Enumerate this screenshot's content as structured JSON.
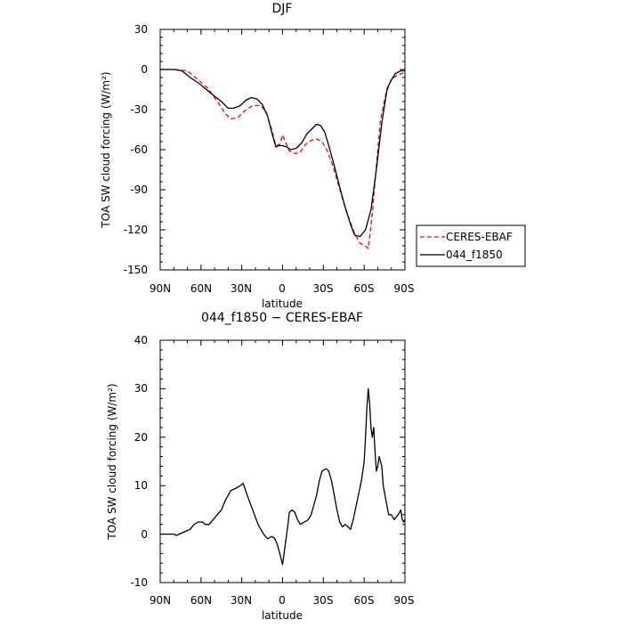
{
  "chart_data": [
    {
      "type": "line",
      "title": "DJF",
      "xlabel": "latitude",
      "ylabel": "TOA SW cloud forcing (W/m²)",
      "xlim": [
        90,
        -90
      ],
      "ylim": [
        -150,
        30
      ],
      "xticks": [
        90,
        60,
        30,
        0,
        -30,
        -60,
        -90
      ],
      "xtick_labels": [
        "90N",
        "60N",
        "30N",
        "0",
        "30S",
        "60S",
        "90S"
      ],
      "yticks": [
        -150,
        -120,
        -90,
        -60,
        -30,
        0,
        30
      ],
      "ytick_labels": [
        "-150",
        "-120",
        "-90",
        "-60",
        "-30",
        "0",
        "30"
      ],
      "legend": {
        "position": "right",
        "entries": [
          "CERES-EBAF",
          "044_f1850"
        ]
      },
      "series": [
        {
          "name": "CERES-EBAF",
          "color": "#ff0000",
          "dash": "dashed",
          "points": [
            [
              90,
              0
            ],
            [
              80,
              0
            ],
            [
              70,
              -1
            ],
            [
              63,
              -7
            ],
            [
              55,
              -14
            ],
            [
              48,
              -24
            ],
            [
              42,
              -33
            ],
            [
              38,
              -37
            ],
            [
              33,
              -36
            ],
            [
              28,
              -31
            ],
            [
              22,
              -27
            ],
            [
              16,
              -27
            ],
            [
              12,
              -32
            ],
            [
              8,
              -45
            ],
            [
              5,
              -57
            ],
            [
              2,
              -56
            ],
            [
              0,
              -49
            ],
            [
              -2,
              -54
            ],
            [
              -5,
              -61
            ],
            [
              -9,
              -63
            ],
            [
              -13,
              -62
            ],
            [
              -17,
              -56
            ],
            [
              -21,
              -53
            ],
            [
              -25,
              -52
            ],
            [
              -29,
              -54
            ],
            [
              -33,
              -61
            ],
            [
              -37,
              -72
            ],
            [
              -41,
              -86
            ],
            [
              -45,
              -100
            ],
            [
              -49,
              -112
            ],
            [
              -53,
              -123
            ],
            [
              -57,
              -130
            ],
            [
              -61,
              -132
            ],
            [
              -63,
              -134
            ],
            [
              -64,
              -126
            ],
            [
              -66,
              -108
            ],
            [
              -69,
              -72
            ],
            [
              -72,
              -38
            ],
            [
              -76,
              -18
            ],
            [
              -80,
              -7
            ],
            [
              -85,
              -4
            ],
            [
              -88,
              -3
            ],
            [
              -90,
              -2
            ]
          ]
        },
        {
          "name": "044_f1850",
          "color": "#000000",
          "dash": "solid",
          "points": [
            [
              90,
              0
            ],
            [
              80,
              0
            ],
            [
              74,
              -1
            ],
            [
              68,
              -6
            ],
            [
              62,
              -10
            ],
            [
              56,
              -15
            ],
            [
              50,
              -20
            ],
            [
              45,
              -24
            ],
            [
              40,
              -29
            ],
            [
              36,
              -29
            ],
            [
              31,
              -27
            ],
            [
              27,
              -23
            ],
            [
              23,
              -21
            ],
            [
              19,
              -22
            ],
            [
              15,
              -26
            ],
            [
              11,
              -35
            ],
            [
              8,
              -47
            ],
            [
              5,
              -58
            ],
            [
              3,
              -57
            ],
            [
              0,
              -57
            ],
            [
              -3,
              -58
            ],
            [
              -6,
              -60
            ],
            [
              -10,
              -59
            ],
            [
              -14,
              -55
            ],
            [
              -18,
              -48
            ],
            [
              -22,
              -44
            ],
            [
              -25,
              -41
            ],
            [
              -28,
              -42
            ],
            [
              -31,
              -47
            ],
            [
              -34,
              -57
            ],
            [
              -38,
              -72
            ],
            [
              -42,
              -88
            ],
            [
              -46,
              -103
            ],
            [
              -50,
              -116
            ],
            [
              -53,
              -124
            ],
            [
              -57,
              -125
            ],
            [
              -61,
              -120
            ],
            [
              -65,
              -105
            ],
            [
              -69,
              -75
            ],
            [
              -73,
              -40
            ],
            [
              -77,
              -14
            ],
            [
              -80,
              -8
            ],
            [
              -83,
              -3
            ],
            [
              -87,
              -1
            ],
            [
              -90,
              -1
            ]
          ]
        }
      ]
    },
    {
      "type": "line",
      "title": "044_f1850 − CERES-EBAF",
      "xlabel": "latitude",
      "ylabel": "TOA SW cloud forcing (W/m²)",
      "xlim": [
        90,
        -90
      ],
      "ylim": [
        -10,
        40
      ],
      "xticks": [
        90,
        60,
        30,
        0,
        -30,
        -60,
        -90
      ],
      "xtick_labels": [
        "90N",
        "60N",
        "30N",
        "0",
        "30S",
        "60S",
        "90S"
      ],
      "yticks": [
        -10,
        0,
        10,
        20,
        30,
        40
      ],
      "ytick_labels": [
        "-10",
        "0",
        "10",
        "20",
        "30",
        "40"
      ],
      "series": [
        {
          "color": "#000000",
          "dash": "solid",
          "points": [
            [
              90,
              0
            ],
            [
              80,
              0
            ],
            [
              78,
              -0.3
            ],
            [
              76,
              0
            ],
            [
              72,
              0.5
            ],
            [
              68,
              1
            ],
            [
              65,
              2
            ],
            [
              62,
              2.5
            ],
            [
              59,
              2.5
            ],
            [
              57,
              2
            ],
            [
              54,
              2
            ],
            [
              51,
              3
            ],
            [
              48,
              4
            ],
            [
              45,
              5
            ],
            [
              42,
              7
            ],
            [
              38,
              9
            ],
            [
              34,
              9.5
            ],
            [
              31,
              10
            ],
            [
              29,
              10.5
            ],
            [
              26,
              8
            ],
            [
              22,
              5
            ],
            [
              18,
              2
            ],
            [
              14,
              0
            ],
            [
              11,
              -1
            ],
            [
              8,
              -0.5
            ],
            [
              6,
              -0.8
            ],
            [
              4,
              -2
            ],
            [
              2,
              -4
            ],
            [
              0,
              -6.3
            ],
            [
              -2,
              -2
            ],
            [
              -4,
              2
            ],
            [
              -5,
              4.5
            ],
            [
              -7,
              5
            ],
            [
              -9,
              4.5
            ],
            [
              -11,
              3
            ],
            [
              -13,
              2
            ],
            [
              -16,
              2.5
            ],
            [
              -19,
              3
            ],
            [
              -21,
              4
            ],
            [
              -23,
              6
            ],
            [
              -25,
              8
            ],
            [
              -27,
              11
            ],
            [
              -29,
              13
            ],
            [
              -32,
              13.5
            ],
            [
              -34,
              13
            ],
            [
              -36,
              11
            ],
            [
              -38,
              8
            ],
            [
              -40,
              5
            ],
            [
              -42,
              2.5
            ],
            [
              -44,
              1.5
            ],
            [
              -46,
              2
            ],
            [
              -48,
              1.5
            ],
            [
              -50,
              1
            ],
            [
              -52,
              3
            ],
            [
              -55,
              7
            ],
            [
              -58,
              11
            ],
            [
              -60,
              15
            ],
            [
              -61,
              20
            ],
            [
              -62,
              26
            ],
            [
              -63,
              30
            ],
            [
              -64,
              27
            ],
            [
              -65,
              22
            ],
            [
              -66,
              20
            ],
            [
              -67,
              22
            ],
            [
              -68,
              17
            ],
            [
              -69,
              13
            ],
            [
              -70,
              14
            ],
            [
              -71,
              16
            ],
            [
              -72,
              15
            ],
            [
              -73,
              14
            ],
            [
              -74,
              10
            ],
            [
              -76,
              7
            ],
            [
              -78,
              4
            ],
            [
              -80,
              4
            ],
            [
              -82,
              3
            ],
            [
              -85,
              4
            ],
            [
              -87,
              5
            ],
            [
              -88,
              3
            ],
            [
              -89,
              2.5
            ],
            [
              -90,
              3
            ]
          ]
        }
      ]
    }
  ]
}
